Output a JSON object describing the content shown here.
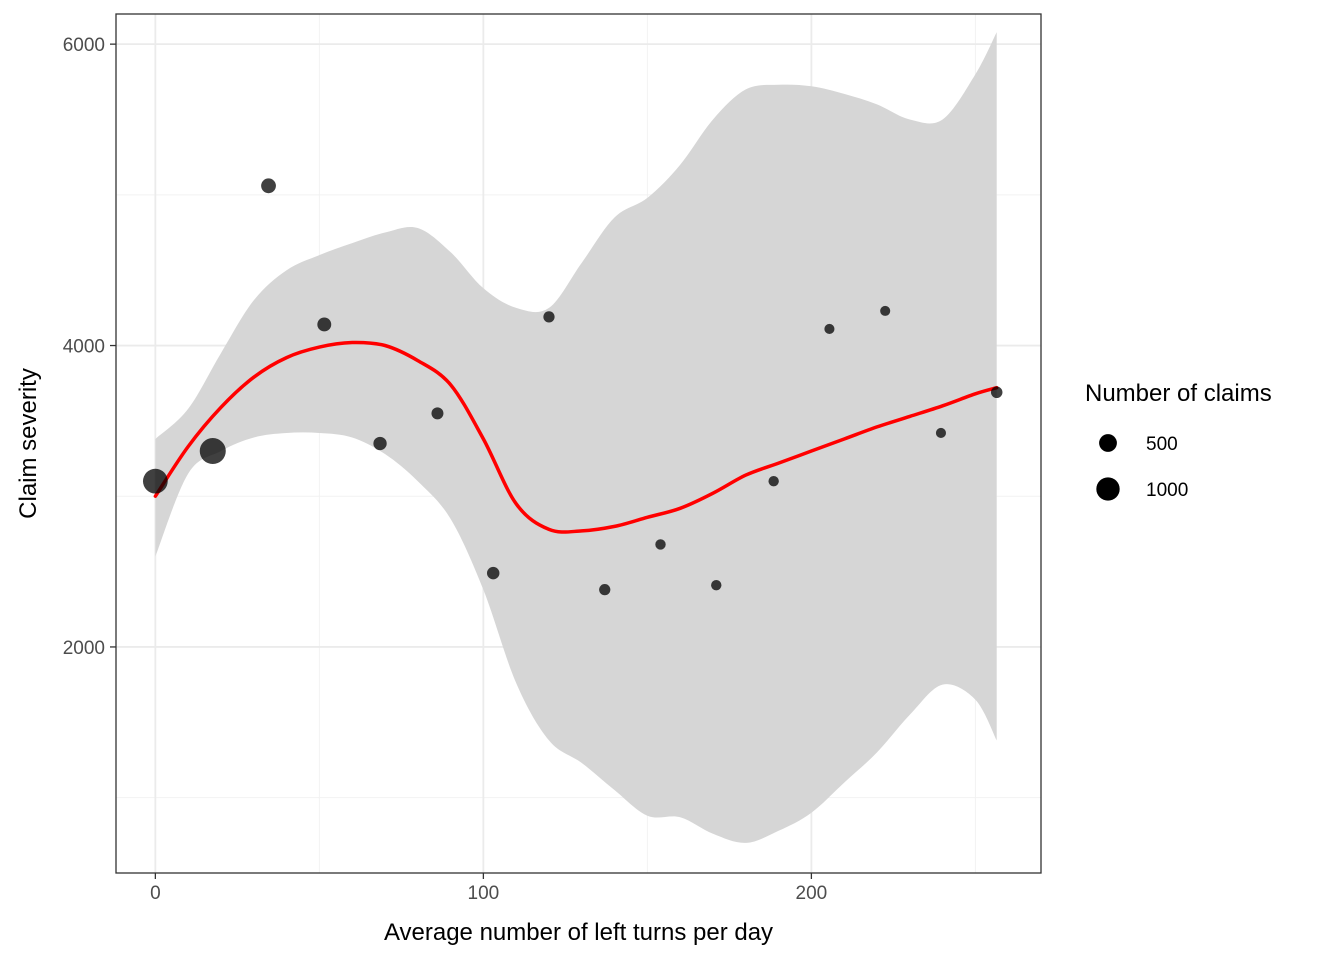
{
  "chart_data": {
    "type": "scatter",
    "xlabel": "Average number of left turns per day",
    "ylabel": "Claim severity",
    "xlim": [
      -12,
      270
    ],
    "ylim": [
      500,
      6200
    ],
    "x_ticks": [
      0,
      100,
      200
    ],
    "x_tick_labels": [
      "0",
      "100",
      "200"
    ],
    "x_minor_ticks": [
      50,
      150,
      250
    ],
    "y_ticks": [
      2000,
      4000,
      6000
    ],
    "y_tick_labels": [
      "2000",
      "4000",
      "6000"
    ],
    "y_minor_ticks": [
      1000,
      3000,
      5000
    ],
    "grid": true,
    "points": [
      {
        "x": 0,
        "y": 3100,
        "claims": 1150
      },
      {
        "x": 17.5,
        "y": 3300,
        "claims": 1300
      },
      {
        "x": 34.5,
        "y": 5060,
        "claims": 300
      },
      {
        "x": 51.5,
        "y": 4140,
        "claims": 250
      },
      {
        "x": 68.5,
        "y": 3350,
        "claims": 220
      },
      {
        "x": 86,
        "y": 3550,
        "claims": 160
      },
      {
        "x": 103,
        "y": 2490,
        "claims": 180
      },
      {
        "x": 120,
        "y": 4190,
        "claims": 130
      },
      {
        "x": 137,
        "y": 2380,
        "claims": 130
      },
      {
        "x": 154,
        "y": 2680,
        "claims": 100
      },
      {
        "x": 171,
        "y": 2410,
        "claims": 100
      },
      {
        "x": 188.5,
        "y": 3100,
        "claims": 100
      },
      {
        "x": 205.5,
        "y": 4110,
        "claims": 90
      },
      {
        "x": 222.5,
        "y": 4230,
        "claims": 90
      },
      {
        "x": 239.5,
        "y": 3420,
        "claims": 90
      },
      {
        "x": 256.5,
        "y": 3690,
        "claims": 140
      }
    ],
    "smooth_line": {
      "color": "#ff0000",
      "x": [
        0,
        10,
        20,
        30,
        40,
        50,
        60,
        70,
        80,
        90,
        100,
        110,
        120,
        130,
        140,
        150,
        160,
        170,
        180,
        190,
        200,
        210,
        220,
        230,
        240,
        250,
        256.5
      ],
      "y": [
        3000,
        3330,
        3590,
        3790,
        3920,
        3990,
        4020,
        4000,
        3900,
        3740,
        3380,
        2950,
        2780,
        2770,
        2800,
        2860,
        2920,
        3020,
        3140,
        3220,
        3300,
        3380,
        3460,
        3530,
        3600,
        3680,
        3720
      ],
      "ci_upper": [
        3380,
        3580,
        3950,
        4300,
        4500,
        4600,
        4680,
        4750,
        4780,
        4620,
        4380,
        4250,
        4250,
        4550,
        4850,
        4980,
        5200,
        5500,
        5700,
        5730,
        5720,
        5670,
        5600,
        5500,
        5500,
        5800,
        6080
      ],
      "ci_lower": [
        2600,
        3150,
        3300,
        3390,
        3420,
        3420,
        3390,
        3280,
        3100,
        2850,
        2380,
        1760,
        1380,
        1230,
        1050,
        880,
        870,
        760,
        700,
        780,
        900,
        1100,
        1300,
        1550,
        1750,
        1650,
        1380
      ]
    },
    "ci_fill": "#d6d6d6",
    "point_color": "#000000",
    "legend": {
      "title": "Number of claims",
      "placement": "right",
      "entries": [
        {
          "label": "500",
          "claims": 500
        },
        {
          "label": "1000",
          "claims": 1000
        }
      ]
    }
  }
}
